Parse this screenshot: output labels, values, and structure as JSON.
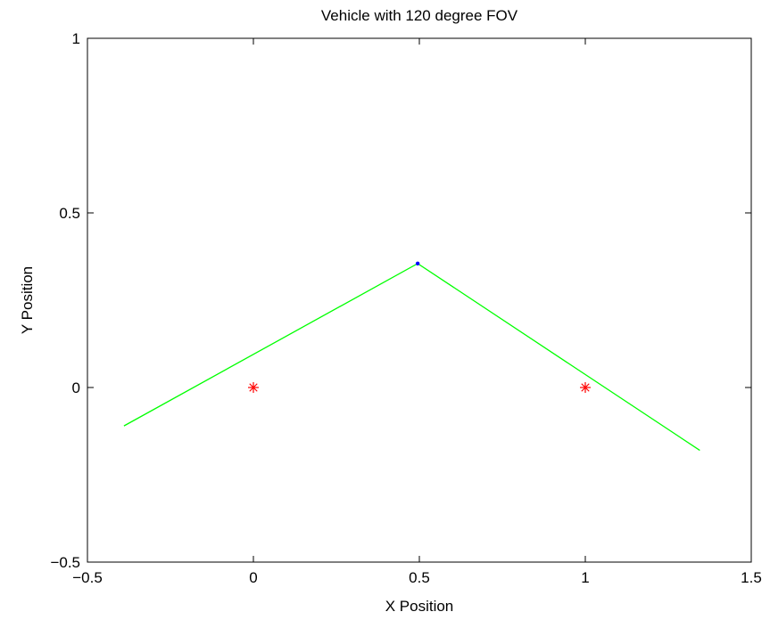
{
  "chart_data": {
    "type": "line",
    "title": "Vehicle with 120 degree FOV",
    "xlabel": "X Position",
    "ylabel": "Y Position",
    "xlim": [
      -0.5,
      1.5
    ],
    "ylim": [
      -0.5,
      1
    ],
    "xticks": [
      -0.5,
      0,
      0.5,
      1,
      1.5
    ],
    "xtick_labels": [
      "−0.5",
      "0",
      "0.5",
      "1",
      "1.5"
    ],
    "yticks": [
      -0.5,
      0,
      0.5,
      1
    ],
    "ytick_labels": [
      "−0.5",
      "0",
      "0.5",
      "1"
    ],
    "grid": false,
    "series": [
      {
        "type": "line",
        "color": "#00ff00",
        "x": [
          -0.39,
          0.495,
          1.345
        ],
        "y": [
          -0.11,
          0.355,
          -0.18
        ]
      },
      {
        "type": "scatter",
        "marker": "asterisk",
        "color": "#ff0000",
        "x": [
          0,
          1
        ],
        "y": [
          0,
          0
        ]
      },
      {
        "type": "scatter",
        "marker": "dot",
        "color": "#0000ff",
        "x": [
          0.495
        ],
        "y": [
          0.355
        ]
      }
    ]
  }
}
